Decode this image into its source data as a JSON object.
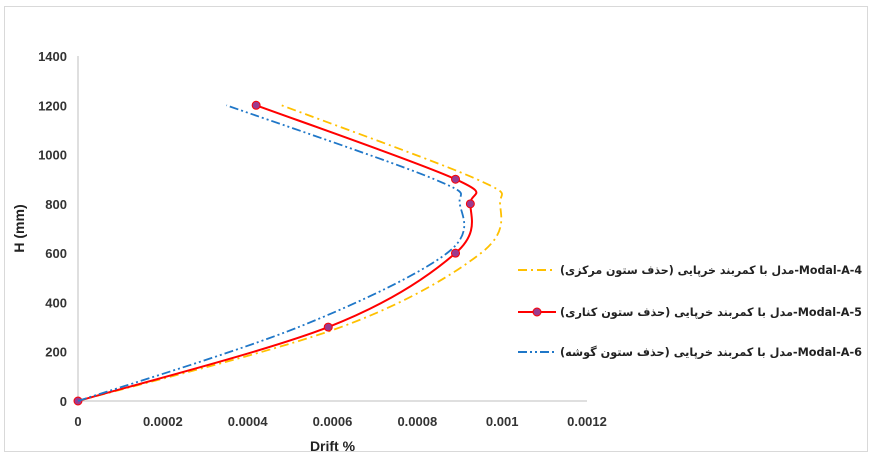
{
  "chart_data": {
    "type": "line",
    "title": "",
    "xlabel": "Drift %",
    "ylabel": "H (mm)",
    "xlim": [
      0,
      0.0012
    ],
    "ylim": [
      0,
      1400
    ],
    "x_ticks": [
      "0",
      "0.0002",
      "0.0004",
      "0.0006",
      "0.0008",
      "0.001",
      "0.0012"
    ],
    "y_ticks": [
      "0",
      "200",
      "400",
      "600",
      "800",
      "1000",
      "1200",
      "1400"
    ],
    "grid": false,
    "legend_position": "right",
    "series": [
      {
        "name": "مدل با کمربند خرپایی (حذف ستون مرکزی)-Modal-A-4",
        "color": "#FFC000",
        "style": "dash-dot",
        "markers": false,
        "points": [
          [
            0,
            0
          ],
          [
            0.00062,
            300
          ],
          [
            0.00095,
            600
          ],
          [
            0.000995,
            800
          ],
          [
            0.00094,
            900
          ],
          [
            0.00048,
            1200
          ]
        ]
      },
      {
        "name": "مدل با کمربند خرپایی (حذف ستون کناری)-Modal-A-5",
        "color": "#FF0000",
        "style": "solid",
        "markers": true,
        "marker_color": "#9B3B8E",
        "points": [
          [
            0,
            0
          ],
          [
            0.00059,
            300
          ],
          [
            0.00089,
            600
          ],
          [
            0.000925,
            800
          ],
          [
            0.00089,
            900
          ],
          [
            0.00042,
            1200
          ]
        ]
      },
      {
        "name": "مدل با کمربند خرپایی (حذف ستون گوشه)-Modal-A-6",
        "color": "#1F77C8",
        "style": "dash-dot-dot",
        "markers": false,
        "points": [
          [
            0,
            0
          ],
          [
            0.00052,
            300
          ],
          [
            0.00087,
            600
          ],
          [
            0.0009,
            800
          ],
          [
            0.00084,
            900
          ],
          [
            0.00035,
            1200
          ]
        ]
      }
    ]
  }
}
